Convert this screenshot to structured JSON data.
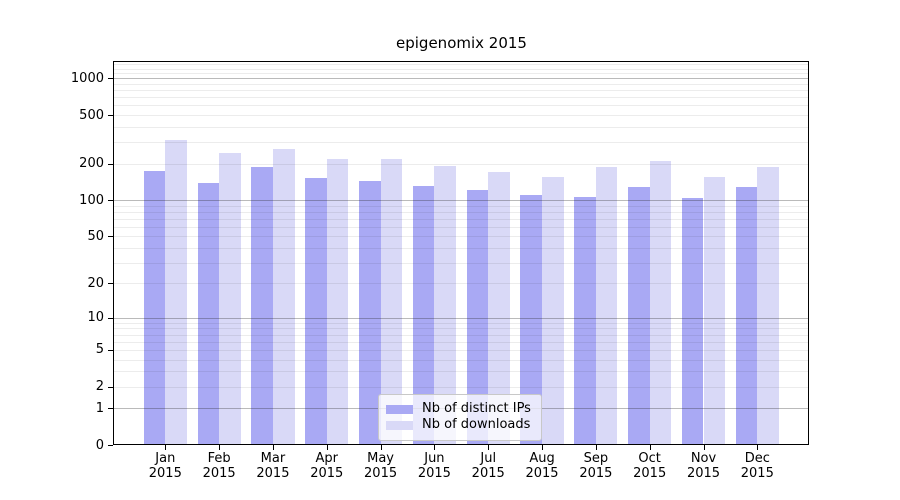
{
  "title": "epigenomix 2015",
  "legend": {
    "items": [
      {
        "label": "Nb of distinct IPs",
        "series": "distinct_ips"
      },
      {
        "label": "Nb of downloads",
        "series": "downloads"
      }
    ]
  },
  "colors": {
    "distinct_ips": "#a9a9f4",
    "downloads": "#d9d9f7",
    "grid_major": "rgba(40,40,40,0.32)",
    "grid_minor": "rgba(40,40,40,0.09)",
    "axis_line": "#000000",
    "text": "#000000",
    "legend_bg": "rgba(255,255,255,0.75)",
    "legend_border": "#c8c8c8"
  },
  "y_axis": {
    "tick_labels": [
      "0",
      "1",
      "2",
      "5",
      "10",
      "20",
      "50",
      "100",
      "200",
      "500",
      "1000"
    ]
  },
  "x_axis": {
    "months": [
      "Jan",
      "Feb",
      "Mar",
      "Apr",
      "May",
      "Jun",
      "Jul",
      "Aug",
      "Sep",
      "Oct",
      "Nov",
      "Dec"
    ],
    "year": "2015"
  },
  "chart_data": {
    "type": "bar",
    "title": "epigenomix 2015",
    "categories": [
      "Jan 2015",
      "Feb 2015",
      "Mar 2015",
      "Apr 2015",
      "May 2015",
      "Jun 2015",
      "Jul 2015",
      "Aug 2015",
      "Sep 2015",
      "Oct 2015",
      "Nov 2015",
      "Dec 2015"
    ],
    "series": [
      {
        "name": "Nb of distinct IPs",
        "color": "#a9a9f4",
        "values": [
          174,
          139,
          189,
          151,
          145,
          131,
          121,
          111,
          107,
          128,
          105,
          127
        ]
      },
      {
        "name": "Nb of downloads",
        "color": "#d9d9f7",
        "values": [
          314,
          245,
          264,
          218,
          217,
          191,
          170,
          154,
          186,
          210,
          156,
          188
        ]
      }
    ],
    "yscale": "log1p",
    "y_tick_values": [
      0,
      1,
      2,
      5,
      10,
      20,
      50,
      100,
      200,
      500,
      1000
    ],
    "ylim": [
      0,
      1380
    ],
    "grid": true,
    "legend_position": "lower center"
  }
}
